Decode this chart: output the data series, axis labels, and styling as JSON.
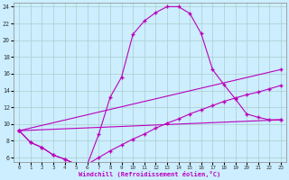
{
  "xlabel": "Windchill (Refroidissement éolien,°C)",
  "background_color": "#cceeff",
  "grid_color": "#aacccc",
  "line_color": "#bb00bb",
  "xlim": [
    -0.5,
    23.5
  ],
  "ylim": [
    5.5,
    24.5
  ],
  "yticks": [
    6,
    8,
    10,
    12,
    14,
    16,
    18,
    20,
    22,
    24
  ],
  "xticks": [
    0,
    1,
    2,
    3,
    4,
    5,
    6,
    7,
    8,
    9,
    10,
    11,
    12,
    13,
    14,
    15,
    16,
    17,
    18,
    19,
    20,
    21,
    22,
    23
  ],
  "curve1_x": [
    0,
    1,
    2,
    3,
    4,
    5,
    6,
    7,
    8,
    9,
    10,
    11,
    12,
    13,
    14,
    15,
    16,
    17,
    18,
    19,
    20,
    21,
    22,
    23
  ],
  "curve1_y": [
    9.2,
    7.8,
    7.2,
    6.3,
    5.8,
    5.2,
    5.2,
    8.8,
    13.2,
    15.6,
    20.7,
    22.3,
    23.3,
    24.0,
    24.0,
    23.2,
    20.8,
    16.5,
    14.7,
    13.0,
    11.2,
    10.8,
    10.5,
    10.5
  ],
  "curve2_x": [
    0,
    1,
    2,
    3,
    4,
    5,
    6,
    7,
    8,
    9,
    10,
    11,
    12,
    13,
    14,
    15,
    16,
    17,
    18,
    19,
    20,
    21,
    22,
    23
  ],
  "curve2_y": [
    9.2,
    7.8,
    7.2,
    6.3,
    5.8,
    5.2,
    5.2,
    6.0,
    6.8,
    7.5,
    8.2,
    8.8,
    9.5,
    10.1,
    10.6,
    11.2,
    11.7,
    12.2,
    12.7,
    13.1,
    13.5,
    13.8,
    14.2,
    14.6
  ],
  "curve3_x": [
    0,
    23
  ],
  "curve3_y": [
    9.2,
    16.5
  ],
  "curve4_x": [
    0,
    23
  ],
  "curve4_y": [
    9.2,
    10.5
  ]
}
